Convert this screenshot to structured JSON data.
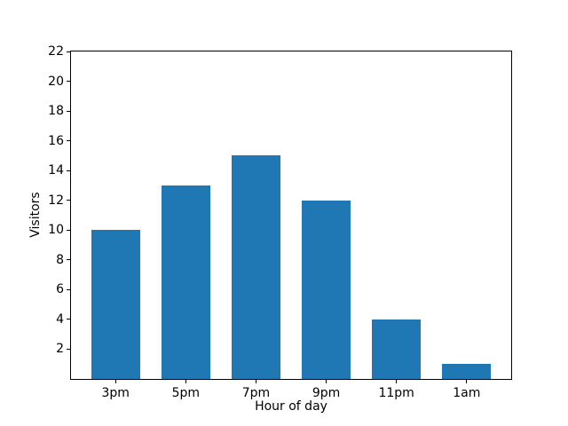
{
  "figure": {
    "background": "#ffffff",
    "frame_color": "#000000",
    "text_color": "#000000"
  },
  "chart_data": {
    "type": "bar",
    "title": "",
    "xlabel": "Hour of day",
    "ylabel": "Visitors",
    "categories": [
      "3pm",
      "5pm",
      "7pm",
      "9pm",
      "11pm",
      "1am"
    ],
    "values": [
      10,
      13,
      15,
      12,
      4,
      1
    ],
    "bar_color": "#1f77b4",
    "bar_width_fraction": 0.7,
    "ylim": [
      0,
      22
    ],
    "yticks": [
      2,
      4,
      6,
      8,
      10,
      12,
      14,
      16,
      18,
      20,
      22
    ],
    "xlim": [
      -0.635,
      5.635
    ],
    "grid": false,
    "legend_position": "none"
  }
}
